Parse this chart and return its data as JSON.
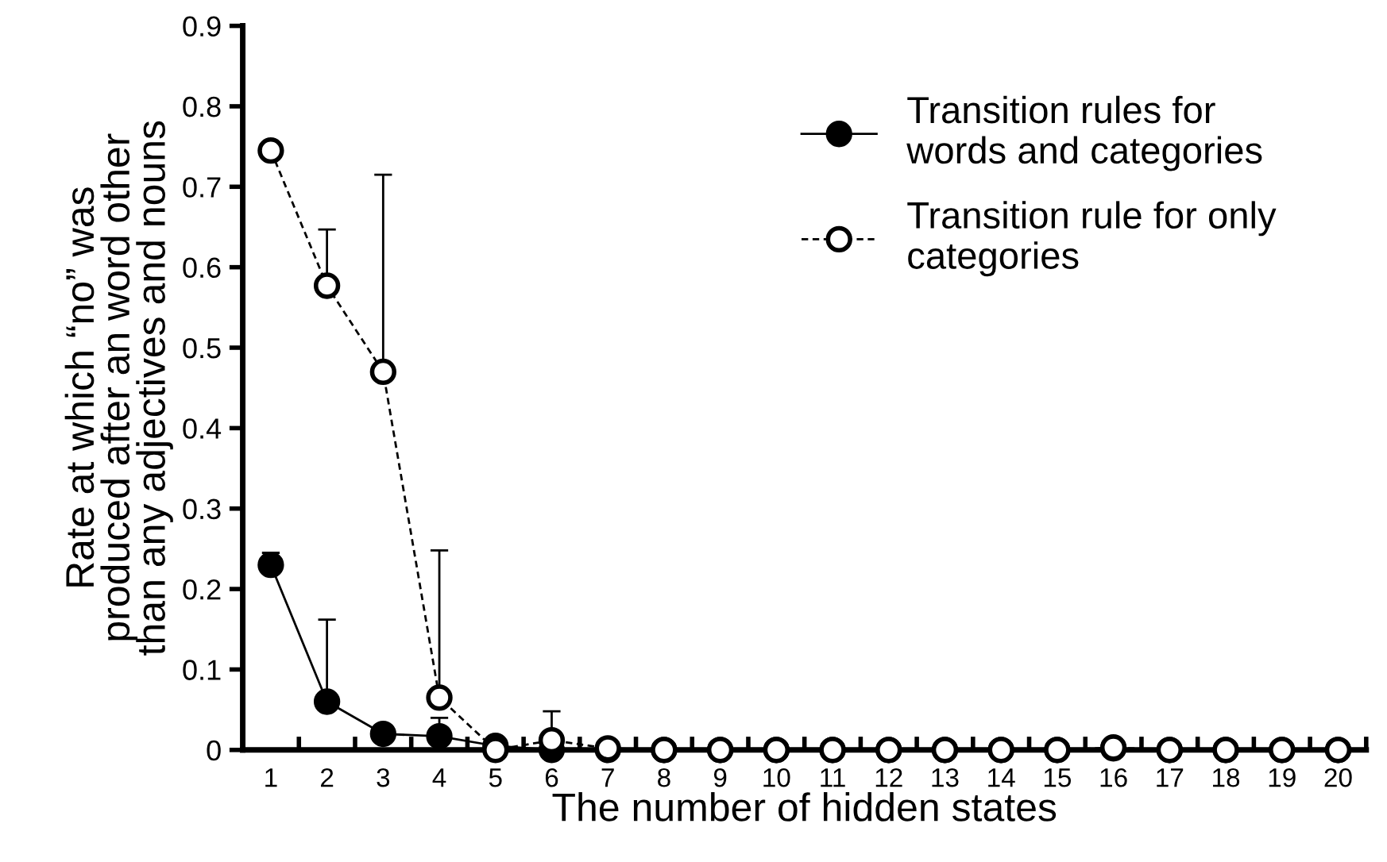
{
  "chart_data": {
    "type": "line",
    "xlabel": "The number of hidden states",
    "ylabel": "Rate at which “no” was\nproduced after an word other\nthan any adjectives and nouns",
    "categories": [
      "1",
      "2",
      "3",
      "4",
      "5",
      "6",
      "7",
      "8",
      "9",
      "10",
      "11",
      "12",
      "13",
      "14",
      "15",
      "16",
      "17",
      "18",
      "19",
      "20"
    ],
    "series": [
      {
        "name": "Transition rules for\nwords and categories",
        "color": "#000000",
        "line_style": "solid",
        "values": [
          0.23,
          0.06,
          0.02,
          0.017,
          0.005,
          0,
          0,
          0,
          0,
          0,
          0,
          0,
          0,
          0,
          0,
          0.002,
          0,
          0,
          0,
          0
        ],
        "errors": [
          [
            0.23,
            0.245
          ],
          [
            0.06,
            0.162
          ],
          [
            0.02,
            0.03
          ],
          [
            0.017,
            0.04
          ],
          [
            0.005,
            0.01
          ],
          null,
          null,
          null,
          null,
          null,
          null,
          null,
          null,
          null,
          null,
          null,
          null,
          null,
          null,
          null
        ]
      },
      {
        "name": "Transition rule for only\ncategories",
        "color": "#000000",
        "line_style": "dashed",
        "values": [
          0.745,
          0.577,
          0.47,
          0.065,
          0,
          0.012,
          0.002,
          0,
          0,
          0,
          0,
          0,
          0,
          0,
          0,
          0.003,
          0,
          0,
          0,
          0
        ],
        "errors": [
          [
            0.745,
            0.745
          ],
          [
            0.577,
            0.647
          ],
          [
            0.47,
            0.715
          ],
          [
            0.065,
            0.248
          ],
          null,
          [
            0.012,
            0.048
          ],
          null,
          null,
          null,
          null,
          null,
          null,
          null,
          null,
          null,
          null,
          null,
          null,
          null,
          null
        ]
      }
    ],
    "ylim": [
      0,
      0.9
    ],
    "yticks": [
      0,
      0.1,
      0.2,
      0.3,
      0.4,
      0.5,
      0.6,
      0.7,
      0.8,
      0.9
    ],
    "grid": false,
    "legend": "top right",
    "marker": "circle"
  }
}
